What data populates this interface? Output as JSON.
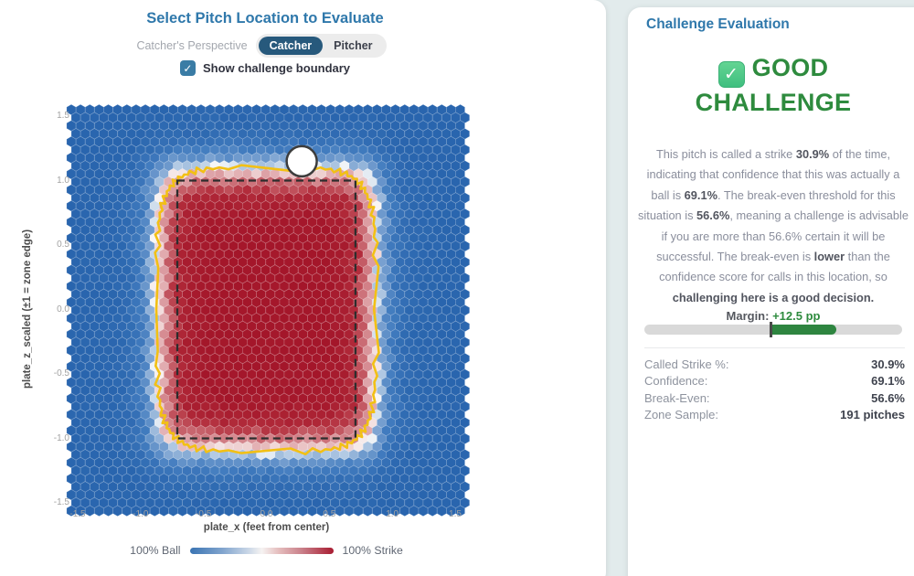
{
  "left_panel": {
    "title": "Select Pitch Location to Evaluate",
    "perspective": {
      "label": "Catcher's Perspective",
      "options": [
        "Catcher",
        "Pitcher"
      ],
      "selected": "Catcher"
    },
    "checkbox": {
      "label": "Show challenge boundary",
      "checked": true
    },
    "plot": {
      "x_label": "plate_x (feet from center)",
      "y_label": "plate_z_scaled (±1 = zone edge)",
      "x_ticks": [
        "-1.5",
        "-1.0",
        "-0.5",
        "0.0",
        "0.5",
        "1.0",
        "1.5"
      ],
      "y_ticks": [
        "1.5",
        "1.0",
        "0.5",
        "0.0",
        "-0.5",
        "-1.0",
        "-1.5"
      ],
      "legend": {
        "left": "100% Ball",
        "right": "100% Strike"
      }
    }
  },
  "right_panel": {
    "title": "Challenge Evaluation",
    "verdict": {
      "emoji": "✅",
      "line1": "GOOD",
      "line2": "CHALLENGE"
    },
    "paragraph": [
      {
        "text": "This pitch is called a strike ",
        "bold": false
      },
      {
        "text": "30.9%",
        "bold": true
      },
      {
        "text": " of the time, indicating that confidence that this was actually a ball is ",
        "bold": false
      },
      {
        "text": "69.1%",
        "bold": true
      },
      {
        "text": ". The break-even threshold for this situation is ",
        "bold": false
      },
      {
        "text": "56.6%",
        "bold": true
      },
      {
        "text": ", meaning a challenge is advisable if you are more than 56.6% certain it will be successful. The break-even is ",
        "bold": false
      },
      {
        "text": "lower",
        "bold": true
      },
      {
        "text": " than the confidence score for calls in this location, so ",
        "bold": false
      },
      {
        "text": "challenging here is a good decision.",
        "bold": true
      }
    ],
    "margin": {
      "label": "Margin:",
      "value": "+12.5 pp"
    },
    "stats": [
      {
        "label": "Called Strike %:",
        "value": "30.9%"
      },
      {
        "label": "Confidence:",
        "value": "69.1%"
      },
      {
        "label": "Break-Even:",
        "value": "56.6%"
      },
      {
        "label": "Zone Sample:",
        "value": "191 pitches"
      }
    ]
  },
  "chart_data": {
    "type": "heatmap",
    "subtype": "hexbin",
    "title": "",
    "xlabel": "plate_x (feet from center)",
    "ylabel": "plate_z_scaled (±1 = zone edge)",
    "xlim": [
      -1.5,
      1.5
    ],
    "ylim": [
      -1.5,
      1.5
    ],
    "x_ticks": [
      -1.5,
      -1.0,
      -0.5,
      0.0,
      0.5,
      1.0,
      1.5
    ],
    "y_ticks": [
      -1.5,
      -1.0,
      -0.5,
      0.0,
      0.5,
      1.0,
      1.5
    ],
    "value_meaning": "called strike probability: deep red ≈ 100% strike inside zone, fading through white (≈50%) at the edge to blue ≈ 100% ball outside",
    "colorbar": {
      "min_label": "100% Ball",
      "max_label": "100% Strike",
      "min_color": "#2a68b0",
      "mid_color": "#fafafa",
      "max_color": "#a61a2e"
    },
    "strike_zone_rect": {
      "x": [
        -0.708,
        0.708
      ],
      "y": [
        -1.0,
        1.0
      ],
      "style": "black dashed"
    },
    "challenge_boundary": {
      "approx_half_width_x": 0.87,
      "approx_half_height_y": 1.1,
      "corner_radius": 0.28,
      "color": "#f2c015",
      "shape": "jagged hex-edge contour near 50% strike"
    },
    "selected_pitch": {
      "x": 0.28,
      "y": 1.15,
      "marker": "white circle, dark outline",
      "called_strike_pct": 30.9
    },
    "grid": false,
    "legend_position": "below x-axis"
  },
  "colors": {
    "header_blue": "#2f78ab",
    "toggle_selected": "#27597c",
    "checkbox_blue": "#3a7ca5",
    "verdict_green": "#2e8b3e",
    "bar_green": "#2e8540",
    "bar_track": "#d9d9d9",
    "boundary_gold": "#f2c015",
    "hex_blue": "#2a68b0",
    "hex_red": "#a61a2e",
    "page_bg": "#e2ebec"
  }
}
